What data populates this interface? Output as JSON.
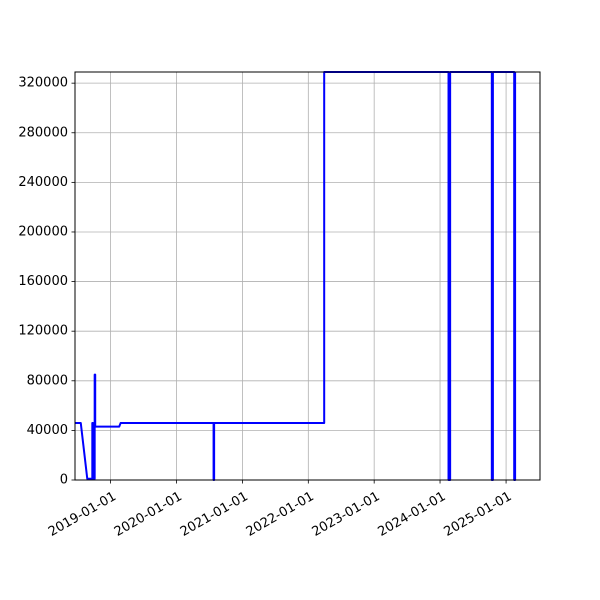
{
  "chart_data": {
    "type": "line",
    "title": "",
    "xlabel": "",
    "ylabel": "",
    "xlim": [
      "2018-06-18",
      "2025-07-08"
    ],
    "ylim": [
      0,
      329000
    ],
    "grid": true,
    "legend": "none",
    "x_ticks": [
      "2019-01-01",
      "2020-01-01",
      "2021-01-01",
      "2022-01-01",
      "2023-01-01",
      "2024-01-01",
      "2025-01-01"
    ],
    "y_ticks": [
      0,
      40000,
      80000,
      120000,
      160000,
      200000,
      240000,
      280000,
      320000
    ],
    "colors": {
      "line": "#0000ff",
      "grid": "#b0b0b0",
      "axis": "#000000"
    },
    "series": [
      {
        "name": "",
        "points": [
          [
            "2018-06-18",
            46000
          ],
          [
            "2018-07-20",
            46000
          ],
          [
            "2018-08-25",
            1000
          ],
          [
            "2018-09-22",
            1000
          ],
          [
            "2018-09-22",
            46000
          ],
          [
            "2018-09-26",
            46000
          ],
          [
            "2018-09-26",
            1000
          ],
          [
            "2018-10-05",
            1000
          ],
          [
            "2018-10-05",
            85000
          ],
          [
            "2018-10-08",
            85000
          ],
          [
            "2018-10-08",
            43000
          ],
          [
            "2019-02-18",
            43000
          ],
          [
            "2019-02-26",
            46000
          ],
          [
            "2020-07-25",
            46000
          ],
          [
            "2020-07-25",
            0
          ],
          [
            "2020-07-28",
            0
          ],
          [
            "2020-07-28",
            46000
          ],
          [
            "2022-03-30",
            46000
          ],
          [
            "2022-03-30",
            329000
          ],
          [
            "2024-02-17",
            329000
          ],
          [
            "2024-02-17",
            0
          ],
          [
            "2024-02-26",
            0
          ],
          [
            "2024-02-26",
            329000
          ],
          [
            "2024-10-14",
            329000
          ],
          [
            "2024-10-14",
            0
          ],
          [
            "2024-10-20",
            0
          ],
          [
            "2024-10-20",
            329000
          ],
          [
            "2025-02-15",
            329000
          ],
          [
            "2025-02-15",
            0
          ],
          [
            "2025-02-20",
            0
          ],
          [
            "2025-02-20",
            329000
          ]
        ]
      }
    ]
  }
}
